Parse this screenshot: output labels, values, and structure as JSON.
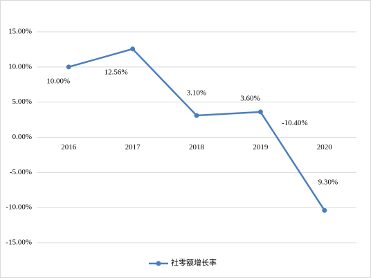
{
  "chart_data": {
    "type": "line",
    "categories": [
      "2016",
      "2017",
      "2018",
      "2019",
      "2020"
    ],
    "series": [
      {
        "name": "社零额增长率",
        "color": "#4a7ebb",
        "values": [
          10.0,
          12.56,
          3.1,
          3.6,
          -10.4
        ],
        "value_labels": [
          "10.00%",
          "12.56%",
          "3.10%",
          "3.60%",
          "-10.40%"
        ]
      }
    ],
    "annotations": [
      "9.30%"
    ],
    "ylim": [
      -15,
      15
    ],
    "yticks": [
      {
        "value": -15,
        "label": "-15.00%"
      },
      {
        "value": -10,
        "label": "-10.00%"
      },
      {
        "value": -5,
        "label": "-5.00%"
      },
      {
        "value": 0,
        "label": "0.00%"
      },
      {
        "value": 5,
        "label": "5.00%"
      },
      {
        "value": 10,
        "label": "10.00%"
      },
      {
        "value": 15,
        "label": "15.00%"
      }
    ],
    "grid": true,
    "legend": "bottom"
  }
}
